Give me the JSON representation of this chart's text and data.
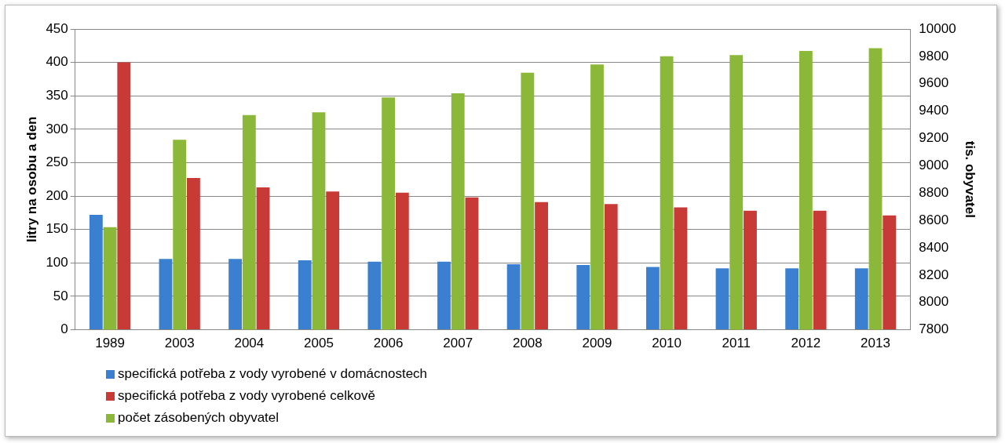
{
  "chart_data": {
    "type": "bar",
    "ylabel": "litry na osobu a den",
    "y2label": "tis. obyvatel",
    "categories": [
      "1989",
      "2003",
      "2004",
      "2005",
      "2006",
      "2007",
      "2008",
      "2009",
      "2010",
      "2011",
      "2012",
      "2013"
    ],
    "series": [
      {
        "name": "specifická potřeba z vody vyrobené v domácnostech",
        "color": "#3a7fd0",
        "values": [
          172,
          106,
          106,
          104,
          102,
          102,
          98,
          97,
          94,
          92,
          92,
          92
        ]
      },
      {
        "name": "specifická potřeba z vody vyrobené celkově",
        "color": "#c83a36",
        "values": [
          400,
          227,
          213,
          207,
          205,
          198,
          191,
          188,
          183,
          178,
          178,
          171
        ]
      },
      {
        "name": "počet zásobených obyvatel",
        "color": "#8cb83a",
        "axis": "y2",
        "values": [
          8550,
          9190,
          9370,
          9390,
          9500,
          9530,
          9680,
          9740,
          9800,
          9810,
          9840,
          9860
        ]
      }
    ],
    "ylim": [
      0,
      450
    ],
    "yticks": [
      0,
      50,
      100,
      150,
      200,
      250,
      300,
      350,
      400,
      450
    ],
    "y2lim": [
      7800,
      10000
    ],
    "y2ticks": [
      7800,
      8000,
      8200,
      8400,
      8600,
      8800,
      9000,
      9200,
      9400,
      9600,
      9800,
      10000
    ],
    "grid": "y",
    "legend": "bottom"
  }
}
